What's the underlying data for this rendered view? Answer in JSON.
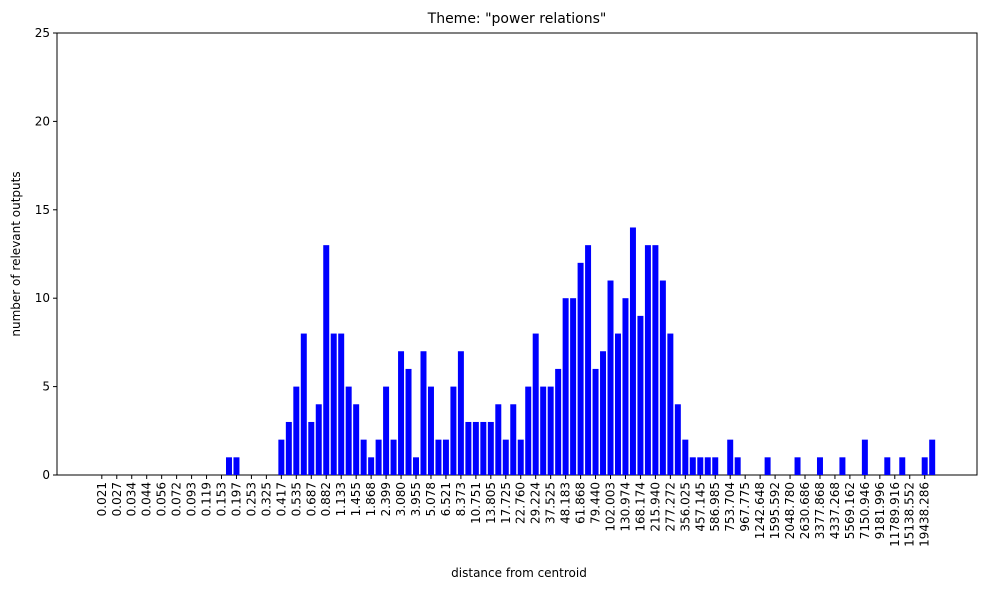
{
  "chart_data": {
    "type": "bar",
    "title": "Theme: \"power relations\"",
    "x_label": "distance from centroid",
    "y_label": "number of relevant outputs",
    "color": "#0000ff",
    "categories": [
      "0.021",
      null,
      "0.027",
      null,
      "0.034",
      null,
      "0.044",
      null,
      "0.056",
      null,
      "0.072",
      null,
      "0.093",
      null,
      "0.119",
      null,
      "0.153",
      null,
      "0.197",
      null,
      "0.253",
      null,
      "0.325",
      null,
      "0.417",
      null,
      "0.535",
      null,
      "0.687",
      null,
      "0.882",
      null,
      "1.133",
      null,
      "1.455",
      null,
      "1.868",
      null,
      "2.399",
      null,
      "3.080",
      null,
      "3.955",
      null,
      "5.078",
      null,
      "6.521",
      null,
      "8.373",
      null,
      "10.751",
      null,
      "13.805",
      null,
      "17.725",
      null,
      "22.760",
      null,
      "29.224",
      null,
      "37.525",
      null,
      "48.183",
      null,
      "61.868",
      null,
      "79.440",
      null,
      "102.003",
      null,
      "130.974",
      null,
      "168.174",
      null,
      "215.940",
      null,
      "277.272",
      null,
      "356.025",
      null,
      "457.145",
      null,
      "586.985",
      null,
      "753.704",
      null,
      "967.775",
      null,
      "1242.648",
      null,
      "1595.592",
      null,
      "2048.780",
      null,
      "2630.686",
      null,
      "3377.868",
      null,
      "4337.268",
      null,
      "5569.162",
      null,
      "7150.946",
      null,
      "9181.996",
      null,
      "11789.916",
      null,
      "15138.552",
      null,
      "19438.286",
      null
    ],
    "values": [
      0,
      0,
      0,
      0,
      0,
      0,
      0,
      0,
      0,
      0,
      0,
      0,
      0,
      0,
      0,
      0,
      0,
      1,
      1,
      0,
      0,
      0,
      0,
      0,
      2,
      3,
      5,
      8,
      3,
      4,
      13,
      8,
      8,
      5,
      4,
      2,
      1,
      2,
      5,
      2,
      7,
      6,
      1,
      7,
      5,
      2,
      2,
      5,
      7,
      3,
      3,
      3,
      3,
      4,
      2,
      4,
      2,
      5,
      8,
      5,
      5,
      6,
      10,
      10,
      12,
      13,
      6,
      7,
      11,
      8,
      10,
      14,
      9,
      13,
      13,
      11,
      8,
      4,
      2,
      1,
      1,
      1,
      1,
      0,
      2,
      1,
      0,
      0,
      0,
      1,
      0,
      0,
      0,
      1,
      0,
      0,
      1,
      0,
      0,
      1,
      0,
      0,
      2,
      0,
      0,
      1,
      0,
      1,
      0,
      0,
      1,
      2
    ],
    "ylim": [
      0,
      25
    ],
    "yticks": [
      0,
      5,
      10,
      15,
      20,
      25
    ]
  }
}
